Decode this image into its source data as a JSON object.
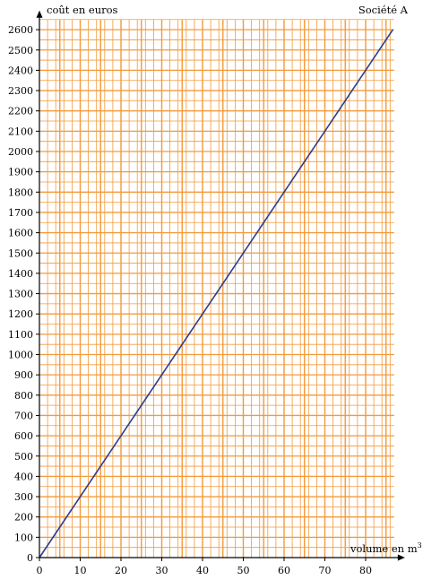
{
  "chart_data": {
    "type": "line",
    "title": "Société A",
    "xlabel": "volume en m",
    "xlabel_sup": "3",
    "ylabel": "coût en euros",
    "xlim": [
      0,
      87
    ],
    "ylim": [
      0,
      2650
    ],
    "x_ticks": [
      0,
      10,
      20,
      30,
      40,
      50,
      60,
      70,
      80
    ],
    "y_ticks": [
      0,
      100,
      200,
      300,
      400,
      500,
      600,
      700,
      800,
      900,
      1000,
      1100,
      1200,
      1300,
      1400,
      1500,
      1600,
      1700,
      1800,
      1900,
      2000,
      2100,
      2200,
      2300,
      2400,
      2500,
      2600
    ],
    "grid": true,
    "grid_minor_x_step": 2,
    "grid_major_x_step": 5,
    "grid_y_step": 50,
    "series": [
      {
        "x": [
          0,
          86.67
        ],
        "y": [
          0,
          2600
        ],
        "color": "#2c3e91"
      }
    ],
    "grid_color": "#f39a3b",
    "axis_color": "#000000"
  }
}
